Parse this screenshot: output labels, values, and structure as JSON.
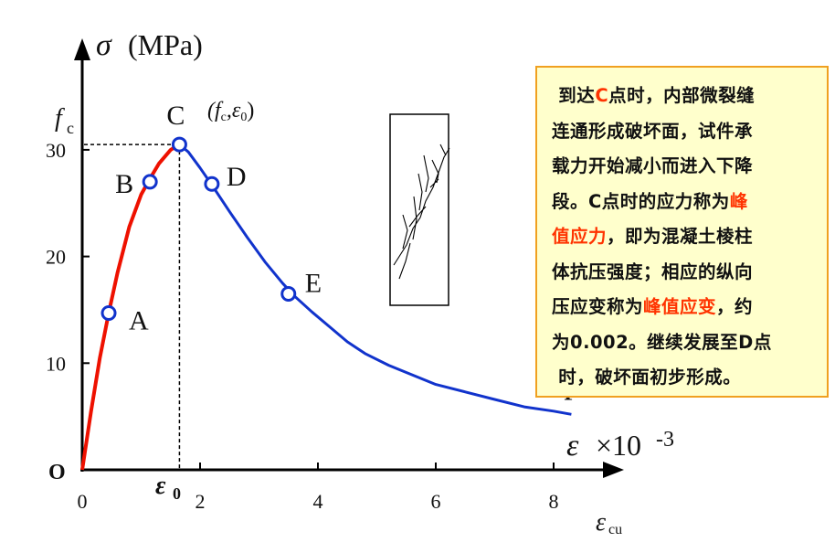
{
  "chart_data": {
    "type": "line",
    "y_axis_label_symbol": "σ",
    "y_axis_label_unit": "(MPa)",
    "x_axis_label_symbol": "ε",
    "x_axis_label_scale": "×10",
    "x_axis_label_exp": "-3",
    "xlim": [
      0,
      8.6
    ],
    "ylim": [
      0,
      35
    ],
    "x_ticks": [
      0,
      2,
      4,
      6,
      8
    ],
    "y_ticks": [
      10,
      20,
      30
    ],
    "origin_label": "O",
    "fc_label": "f",
    "fc_sub": "c",
    "fc_value": 30.5,
    "eps0_label": "ε",
    "eps0_sub": "0",
    "eps0_value": 1.65,
    "ecu_label": "ε",
    "ecu_sub": "cu",
    "grid": false,
    "series": [
      {
        "color": "#ee1100",
        "x": [
          0,
          0.15,
          0.3,
          0.45,
          0.6,
          0.8,
          1.0,
          1.15,
          1.3,
          1.5,
          1.65
        ],
        "y": [
          0,
          5.5,
          10.5,
          14.7,
          18.5,
          22.8,
          25.8,
          27.3,
          28.7,
          30.0,
          30.5
        ]
      },
      {
        "color": "#1133cc",
        "x": [
          1.65,
          1.8,
          2.0,
          2.2,
          2.5,
          2.8,
          3.1,
          3.4,
          3.6,
          3.9,
          4.2,
          4.5,
          4.8,
          5.2,
          5.6,
          6.0,
          6.5,
          7.0,
          7.5,
          8.0,
          8.3
        ],
        "y": [
          30.5,
          29.8,
          28.3,
          26.7,
          24.2,
          21.8,
          19.5,
          17.5,
          16.3,
          14.8,
          13.4,
          12.0,
          10.9,
          9.8,
          8.9,
          8.0,
          7.3,
          6.6,
          5.9,
          5.5,
          5.2
        ]
      }
    ],
    "points": [
      {
        "label": "A",
        "x": 0.45,
        "y": 14.7
      },
      {
        "label": "B",
        "x": 1.15,
        "y": 27.0
      },
      {
        "label": "C",
        "x": 1.65,
        "y": 30.5
      },
      {
        "label": "D",
        "x": 2.2,
        "y": 26.8
      },
      {
        "label": "E",
        "x": 3.5,
        "y": 16.5
      },
      {
        "label": "F",
        "x": 8.3,
        "y": 5.2
      }
    ],
    "c_coord_label": "(f",
    "c_coord_sub1": "c",
    "c_coord_mid": ",ε",
    "c_coord_sub2": "0",
    "c_coord_end": ")"
  },
  "note": {
    "line1_a": "到达",
    "line1_b": "C",
    "line1_c": "点时，内部微裂缝",
    "line2": "连通形成破坏面，试件承",
    "line3": "载力开始减小而进入下降",
    "line4_a": "段。C点时的应力称为",
    "line4_b": "峰",
    "line5_a": "值应力",
    "line5_b": "，即为混凝土棱柱",
    "line6": "体抗压强度；相应的纵向",
    "line7_a": "压应变称为",
    "line7_b": "峰值应变",
    "line7_c": "，约",
    "line8": "为0.002。继续发展至D点",
    "line9": "时，破坏面初步形成。",
    "highlight_color": "#ff3300"
  }
}
